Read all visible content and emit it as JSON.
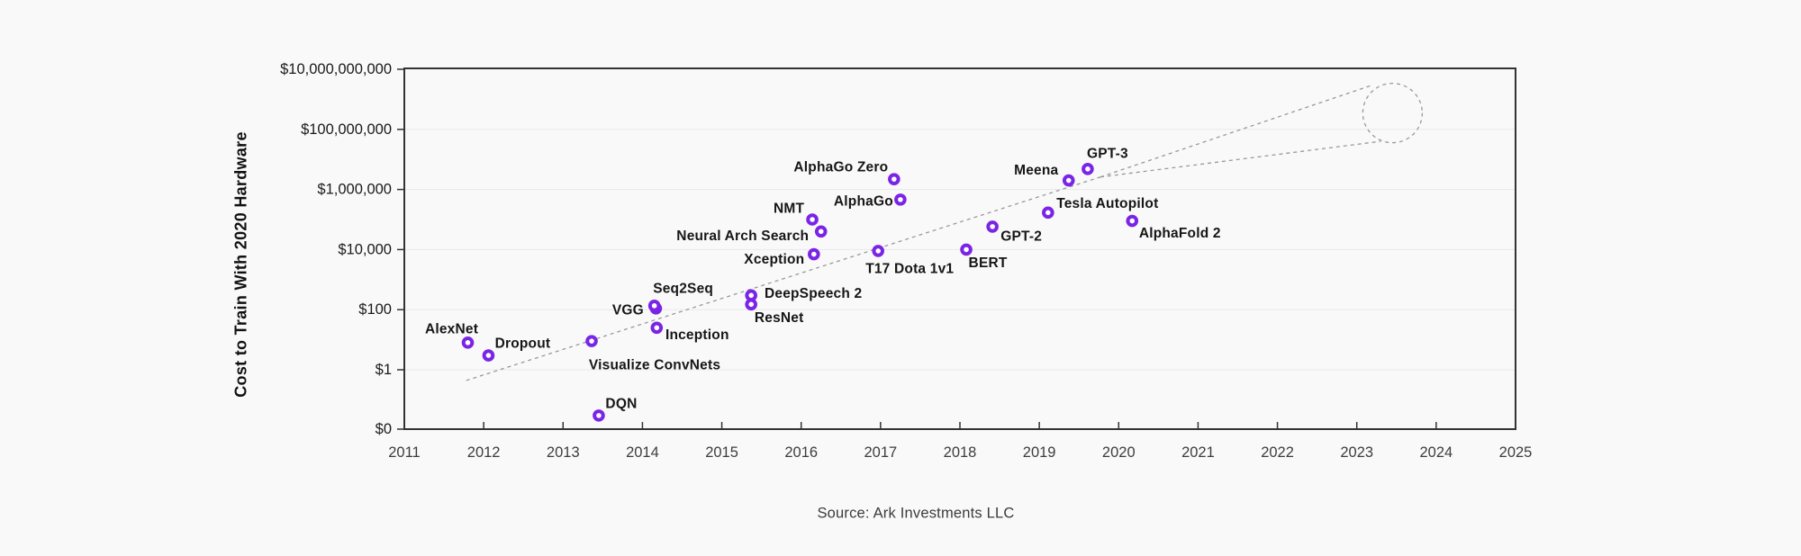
{
  "page": {
    "background": "#f9f9f9"
  },
  "chart": {
    "y_axis_title": "Cost to Train With 2020 Hardware",
    "source": "Source: Ark Investments LLC"
  },
  "chart_data": {
    "type": "scatter",
    "title": "",
    "xlabel": "",
    "ylabel": "Cost to Train With 2020 Hardware",
    "source": "Source: Ark Investments LLC",
    "x_axis": {
      "min": 2011,
      "max": 2025,
      "tick_labels": [
        "2011",
        "2012",
        "2013",
        "2014",
        "2015",
        "2016",
        "2017",
        "2018",
        "2019",
        "2020",
        "2021",
        "2022",
        "2023",
        "2024",
        "2025"
      ]
    },
    "y_axis": {
      "scale": "log",
      "ticks": [
        {
          "label": "$10,000,000,000",
          "value": 10000000000
        },
        {
          "label": "$100,000,000",
          "value": 100000000
        },
        {
          "label": "$1,000,000",
          "value": 1000000
        },
        {
          "label": "$10,000",
          "value": 10000
        },
        {
          "label": "$100",
          "value": 100
        },
        {
          "label": "$1",
          "value": 1
        },
        {
          "label": "$0",
          "value": 0
        }
      ]
    },
    "grid": "horizontal",
    "legend": "none",
    "points": [
      {
        "name": "AlexNet",
        "year": 2011.8,
        "cost": 8,
        "label_offset": [
          -18,
          -15
        ]
      },
      {
        "name": "Dropout",
        "year": 2012.06,
        "cost": 3,
        "label_offset": [
          38,
          -13
        ]
      },
      {
        "name": "DQN",
        "year": 2013.45,
        "cost": 0.03,
        "label_offset": [
          25,
          -13
        ]
      },
      {
        "name": "Visualize ConvNets",
        "year": 2013.36,
        "cost": 9,
        "label_offset": [
          70,
          27
        ]
      },
      {
        "name": "VGG",
        "year": 2014.17,
        "cost": 110,
        "label_offset": [
          -31,
          2
        ]
      },
      {
        "name": "Seq2Seq",
        "year": 2014.15,
        "cost": 135,
        "label_offset": [
          32,
          -19
        ]
      },
      {
        "name": "Inception",
        "year": 2014.18,
        "cost": 25,
        "label_offset": [
          45,
          8
        ]
      },
      {
        "name": "ResNet",
        "year": 2015.37,
        "cost": 150,
        "label_offset": [
          31,
          15
        ]
      },
      {
        "name": "DeepSpeech 2",
        "year": 2015.37,
        "cost": 300,
        "label_offset": [
          69,
          -2
        ]
      },
      {
        "name": "Xception",
        "year": 2016.16,
        "cost": 7000,
        "label_offset": [
          -44,
          6
        ]
      },
      {
        "name": "NMT",
        "year": 2016.14,
        "cost": 100000,
        "label_offset": [
          -26,
          -12
        ]
      },
      {
        "name": "Neural Arch Search",
        "year": 2016.25,
        "cost": 40000,
        "label_offset": [
          -87,
          5
        ]
      },
      {
        "name": "T17 Dota 1v1",
        "year": 2016.97,
        "cost": 9000,
        "label_offset": [
          35,
          20
        ]
      },
      {
        "name": "AlphaGo Zero",
        "year": 2017.17,
        "cost": 2200000,
        "label_offset": [
          -59,
          -13
        ]
      },
      {
        "name": "AlphaGo",
        "year": 2017.25,
        "cost": 460000,
        "label_offset": [
          -41,
          2
        ]
      },
      {
        "name": "BERT",
        "year": 2018.08,
        "cost": 10000,
        "label_offset": [
          24,
          15
        ]
      },
      {
        "name": "GPT-2",
        "year": 2018.41,
        "cost": 58000,
        "label_offset": [
          32,
          11
        ]
      },
      {
        "name": "Tesla Autopilot",
        "year": 2019.11,
        "cost": 170000,
        "label_offset": [
          66,
          -10
        ]
      },
      {
        "name": "Meena",
        "year": 2019.37,
        "cost": 2000000,
        "label_offset": [
          -36,
          -11
        ]
      },
      {
        "name": "GPT-3",
        "year": 2019.61,
        "cost": 4800000,
        "label_offset": [
          22,
          -17
        ]
      },
      {
        "name": "AlphaFold 2",
        "year": 2020.17,
        "cost": 90000,
        "label_offset": [
          53,
          14
        ]
      }
    ],
    "trend": {
      "style": "dashed",
      "main": {
        "from": {
          "year": 2011.78,
          "cost": 0.44
        },
        "to": {
          "year": 2019.77,
          "cost": 2600000
        }
      },
      "upper_branch": {
        "from": {
          "year": 2019.77,
          "cost": 2600000
        },
        "to": {
          "year": 2023.2,
          "cost": 3000000000
        }
      },
      "lower_branch": {
        "from": {
          "year": 2019.77,
          "cost": 2600000
        },
        "to": {
          "year": 2023.3,
          "cost": 40000000
        }
      },
      "forecast_circle": {
        "year": 2023.45,
        "cost": 350000000,
        "radius_px": 33
      }
    },
    "colors": {
      "marker": "#7a24e6",
      "trend_line": "#999999",
      "grid_line": "#e9e9e9",
      "axis": "#333333",
      "point_label_text": "#161616",
      "x_tick_text": "#3d3d3d",
      "y_tick_text": "#1a1a1a"
    }
  }
}
